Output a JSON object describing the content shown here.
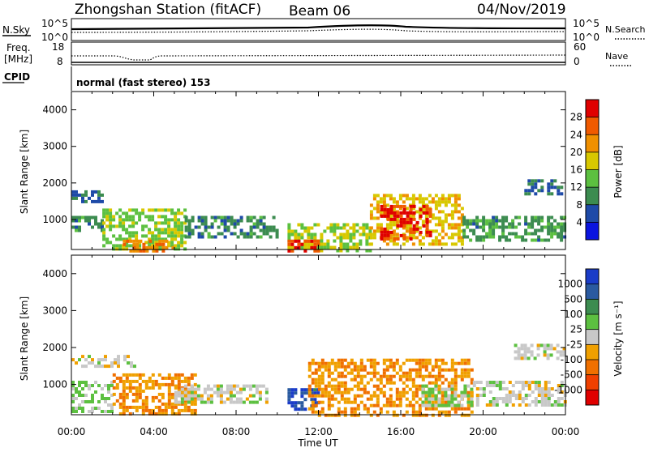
{
  "header": {
    "title": "Zhongshan Station (fitACF)",
    "beam": "Beam 06",
    "date": "04/Nov/2019"
  },
  "nsky_panel": {
    "left_label": "N.Sky",
    "left_ticks": [
      "10^5",
      "10^0"
    ],
    "right_label": "N.Search",
    "right_ticks": [
      "10^5",
      "10^0"
    ]
  },
  "freq_panel": {
    "left_label_line1": "Freq.",
    "left_label_line2": "[MHz]",
    "left_ticks": [
      "18",
      "8"
    ],
    "right_label": "Nave",
    "right_ticks": [
      "60",
      "0"
    ]
  },
  "cpid": {
    "label": "CPID",
    "value": "normal (fast stereo) 153"
  },
  "xaxis": {
    "label": "Time UT",
    "ticks": [
      "00:00",
      "04:00",
      "08:00",
      "12:00",
      "16:00",
      "20:00",
      "00:00"
    ]
  },
  "power_panel": {
    "ylabel": "Slant Range [km]",
    "yticks": [
      "4000",
      "3000",
      "2000",
      "1000"
    ],
    "colorbar_label": "Power [dB]",
    "colorbar_ticks": [
      "28",
      "24",
      "20",
      "16",
      "12",
      "8",
      "4"
    ],
    "colors": [
      "#0a14e0",
      "#1e4aa8",
      "#3c8c50",
      "#5cc040",
      "#d8c800",
      "#f09000",
      "#f05a00",
      "#e00000"
    ]
  },
  "velocity_panel": {
    "ylabel": "Slant Range [km]",
    "yticks": [
      "4000",
      "3000",
      "2000",
      "1000"
    ],
    "colorbar_label": "Velocity [m s⁻¹]",
    "colorbar_ticks": [
      "1000",
      "500",
      "100",
      "25",
      "-25",
      "-100",
      "-500",
      "-1000"
    ],
    "colors": [
      "#1a3cc8",
      "#2a5aa0",
      "#3c8c50",
      "#5cc040",
      "#c8c8c8",
      "#f0a000",
      "#f07000",
      "#f04000",
      "#e00000"
    ]
  },
  "chart_data": [
    {
      "type": "heatmap",
      "title": "Power [dB]",
      "xlabel": "Time UT",
      "ylabel": "Slant Range [km]",
      "xlim": [
        "00:00",
        "24:00"
      ],
      "ylim": [
        180,
        4500
      ],
      "colorbar_range": [
        0,
        30
      ],
      "regions": [
        {
          "t0": 0.0,
          "t1": 1.5,
          "r0": 1450,
          "r1": 1800,
          "value": 7
        },
        {
          "t0": 0.0,
          "t1": 1.5,
          "r0": 700,
          "r1": 1100,
          "value": 9
        },
        {
          "t0": 1.5,
          "t1": 5.5,
          "r0": 180,
          "r1": 1300,
          "value": 14
        },
        {
          "t0": 2.5,
          "t1": 5.0,
          "r0": 180,
          "r1": 450,
          "value": 22
        },
        {
          "t0": 5.5,
          "t1": 10.0,
          "r0": 500,
          "r1": 1100,
          "value": 9
        },
        {
          "t0": 10.5,
          "t1": 14.5,
          "r0": 180,
          "r1": 900,
          "value": 15
        },
        {
          "t0": 10.5,
          "t1": 12.0,
          "r0": 180,
          "r1": 450,
          "value": 26
        },
        {
          "t0": 14.5,
          "t1": 19.0,
          "r0": 300,
          "r1": 1700,
          "value": 18
        },
        {
          "t0": 15.0,
          "t1": 17.5,
          "r0": 500,
          "r1": 1400,
          "value": 27
        },
        {
          "t0": 19.0,
          "t1": 24.0,
          "r0": 400,
          "r1": 1100,
          "value": 10
        },
        {
          "t0": 22.0,
          "t1": 24.0,
          "r0": 1700,
          "r1": 2100,
          "value": 8
        }
      ]
    },
    {
      "type": "heatmap",
      "title": "Velocity [m s⁻¹]",
      "xlabel": "Time UT",
      "ylabel": "Slant Range [km]",
      "xlim": [
        "00:00",
        "24:00"
      ],
      "ylim": [
        180,
        4500
      ],
      "colorbar_range": [
        -1000,
        1000
      ],
      "regions": [
        {
          "t0": 0.0,
          "t1": 3.0,
          "r0": 1450,
          "r1": 1800,
          "value": 0
        },
        {
          "t0": 0.0,
          "t1": 2.0,
          "r0": 300,
          "r1": 1100,
          "value": 150
        },
        {
          "t0": 2.0,
          "t1": 6.0,
          "r0": 200,
          "r1": 1300,
          "value": -300
        },
        {
          "t0": 5.0,
          "t1": 9.5,
          "r0": 500,
          "r1": 1000,
          "value": 0
        },
        {
          "t0": 10.5,
          "t1": 12.0,
          "r0": 300,
          "r1": 900,
          "value": 700
        },
        {
          "t0": 11.5,
          "t1": 19.5,
          "r0": 200,
          "r1": 1700,
          "value": -300
        },
        {
          "t0": 17.0,
          "t1": 19.5,
          "r0": 400,
          "r1": 1000,
          "value": 100
        },
        {
          "t0": 19.5,
          "t1": 24.0,
          "r0": 400,
          "r1": 1100,
          "value": 0
        },
        {
          "t0": 21.5,
          "t1": 24.0,
          "r0": 1700,
          "r1": 2100,
          "value": 0
        }
      ]
    }
  ]
}
